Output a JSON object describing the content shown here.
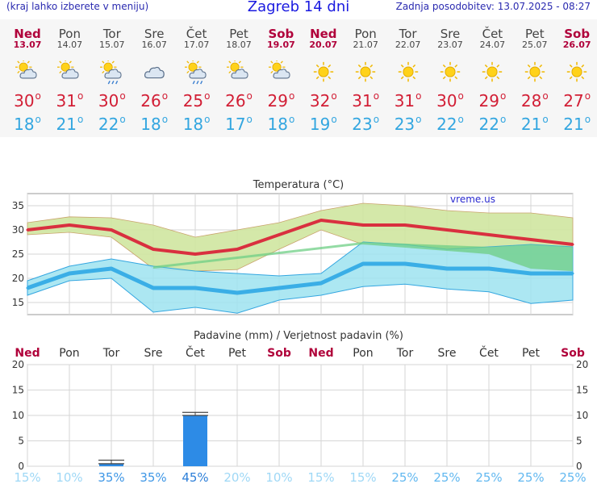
{
  "header": {
    "hint": "(kraj lahko izberete v meniju)",
    "title": "Zagreb 14 dni",
    "updated": "Zadnja posodobitev: 13.07.2025 - 08:27"
  },
  "days": [
    {
      "name": "Ned",
      "date": "13.07",
      "weekend": true,
      "icon": "sun-cloud-icon",
      "tmax": "30",
      "tmin": "18"
    },
    {
      "name": "Pon",
      "date": "14.07",
      "weekend": false,
      "icon": "sun-cloud-icon",
      "tmax": "31",
      "tmin": "21"
    },
    {
      "name": "Tor",
      "date": "15.07",
      "weekend": false,
      "icon": "sun-cloud-rain-icon",
      "tmax": "30",
      "tmin": "22"
    },
    {
      "name": "Sre",
      "date": "16.07",
      "weekend": false,
      "icon": "cloud-icon",
      "tmax": "26",
      "tmin": "18"
    },
    {
      "name": "Čet",
      "date": "17.07",
      "weekend": false,
      "icon": "sun-cloud-rain-icon",
      "tmax": "25",
      "tmin": "18"
    },
    {
      "name": "Pet",
      "date": "18.07",
      "weekend": false,
      "icon": "sun-cloud-icon",
      "tmax": "26",
      "tmin": "17"
    },
    {
      "name": "Sob",
      "date": "19.07",
      "weekend": true,
      "icon": "sun-cloud-icon",
      "tmax": "29",
      "tmin": "18"
    },
    {
      "name": "Ned",
      "date": "20.07",
      "weekend": true,
      "icon": "sun-icon",
      "tmax": "32",
      "tmin": "19"
    },
    {
      "name": "Pon",
      "date": "21.07",
      "weekend": false,
      "icon": "sun-icon",
      "tmax": "31",
      "tmin": "23"
    },
    {
      "name": "Tor",
      "date": "22.07",
      "weekend": false,
      "icon": "sun-icon",
      "tmax": "31",
      "tmin": "23"
    },
    {
      "name": "Sre",
      "date": "23.07",
      "weekend": false,
      "icon": "sun-icon",
      "tmax": "30",
      "tmin": "22"
    },
    {
      "name": "Čet",
      "date": "24.07",
      "weekend": false,
      "icon": "sun-icon",
      "tmax": "29",
      "tmin": "22"
    },
    {
      "name": "Pet",
      "date": "25.07",
      "weekend": false,
      "icon": "sun-icon",
      "tmax": "28",
      "tmin": "21"
    },
    {
      "name": "Sob",
      "date": "26.07",
      "weekend": true,
      "icon": "sun-icon",
      "tmax": "27",
      "tmin": "21"
    }
  ],
  "colors": {
    "max_line": "#d9303f",
    "min_line": "#3aaee6",
    "max_band": "#cfe6a0",
    "min_band": "#9ee3f0",
    "overlap_band": "#6fcf86",
    "bar": "#2d8be6",
    "weekend_label": "#b0003a"
  },
  "chart_data": [
    {
      "type": "line",
      "title": "Temperatura (°C)",
      "watermark": "vreme.us",
      "categories": [
        "13.07",
        "14.07",
        "15.07",
        "16.07",
        "17.07",
        "18.07",
        "19.07",
        "20.07",
        "21.07",
        "22.07",
        "23.07",
        "24.07",
        "25.07",
        "26.07"
      ],
      "ylim": [
        12.5,
        37.5
      ],
      "yticks": [
        15,
        20,
        25,
        30,
        35
      ],
      "grid": true,
      "series": [
        {
          "role": "max",
          "values": [
            30,
            31,
            30,
            26,
            25,
            26,
            29,
            32,
            31,
            31,
            30,
            29,
            28,
            27
          ]
        },
        {
          "role": "min",
          "values": [
            18,
            21,
            22,
            18,
            18,
            17,
            18,
            19,
            23,
            23,
            22,
            22,
            21,
            21
          ]
        }
      ],
      "bands": [
        {
          "role": "max-range",
          "upper": [
            31.5,
            32.7,
            32.5,
            31,
            28.5,
            30,
            31.5,
            34,
            35.5,
            35,
            34,
            33.5,
            33.5,
            32.5
          ],
          "lower": [
            29,
            29.5,
            28.5,
            22,
            21.5,
            21.8,
            26,
            30,
            27,
            27,
            26,
            25,
            22,
            21.5
          ]
        },
        {
          "role": "min-range",
          "upper": [
            19.5,
            22.5,
            24,
            22.5,
            21.5,
            21,
            20.5,
            21,
            27.5,
            27,
            26,
            26.5,
            27,
            26.5
          ],
          "lower": [
            16.5,
            19.5,
            20,
            13,
            14,
            12.8,
            15.5,
            16.5,
            18.3,
            18.8,
            17.8,
            17.2,
            14.8,
            15.5
          ]
        }
      ]
    },
    {
      "type": "bar",
      "title": "Padavine (mm) / Verjetnost padavin (%)",
      "categories": [
        "Ned",
        "Pon",
        "Tor",
        "Sre",
        "Čet",
        "Pet",
        "Sob",
        "Ned",
        "Pon",
        "Tor",
        "Sre",
        "Čet",
        "Pet",
        "Sob"
      ],
      "ylim": [
        0,
        20
      ],
      "yticks": [
        0,
        5,
        10,
        15,
        20
      ],
      "grid": true,
      "values": [
        0,
        0,
        0.5,
        0,
        10,
        0,
        0,
        0,
        0,
        0,
        0,
        0,
        0,
        0
      ],
      "error_max": [
        0,
        0,
        1.2,
        0,
        10.6,
        0,
        0,
        0,
        0,
        0,
        0,
        0,
        0,
        0
      ],
      "probabilities": [
        "15%",
        "10%",
        "35%",
        "35%",
        "45%",
        "20%",
        "10%",
        "15%",
        "15%",
        "25%",
        "25%",
        "25%",
        "25%",
        "25%"
      ]
    }
  ]
}
